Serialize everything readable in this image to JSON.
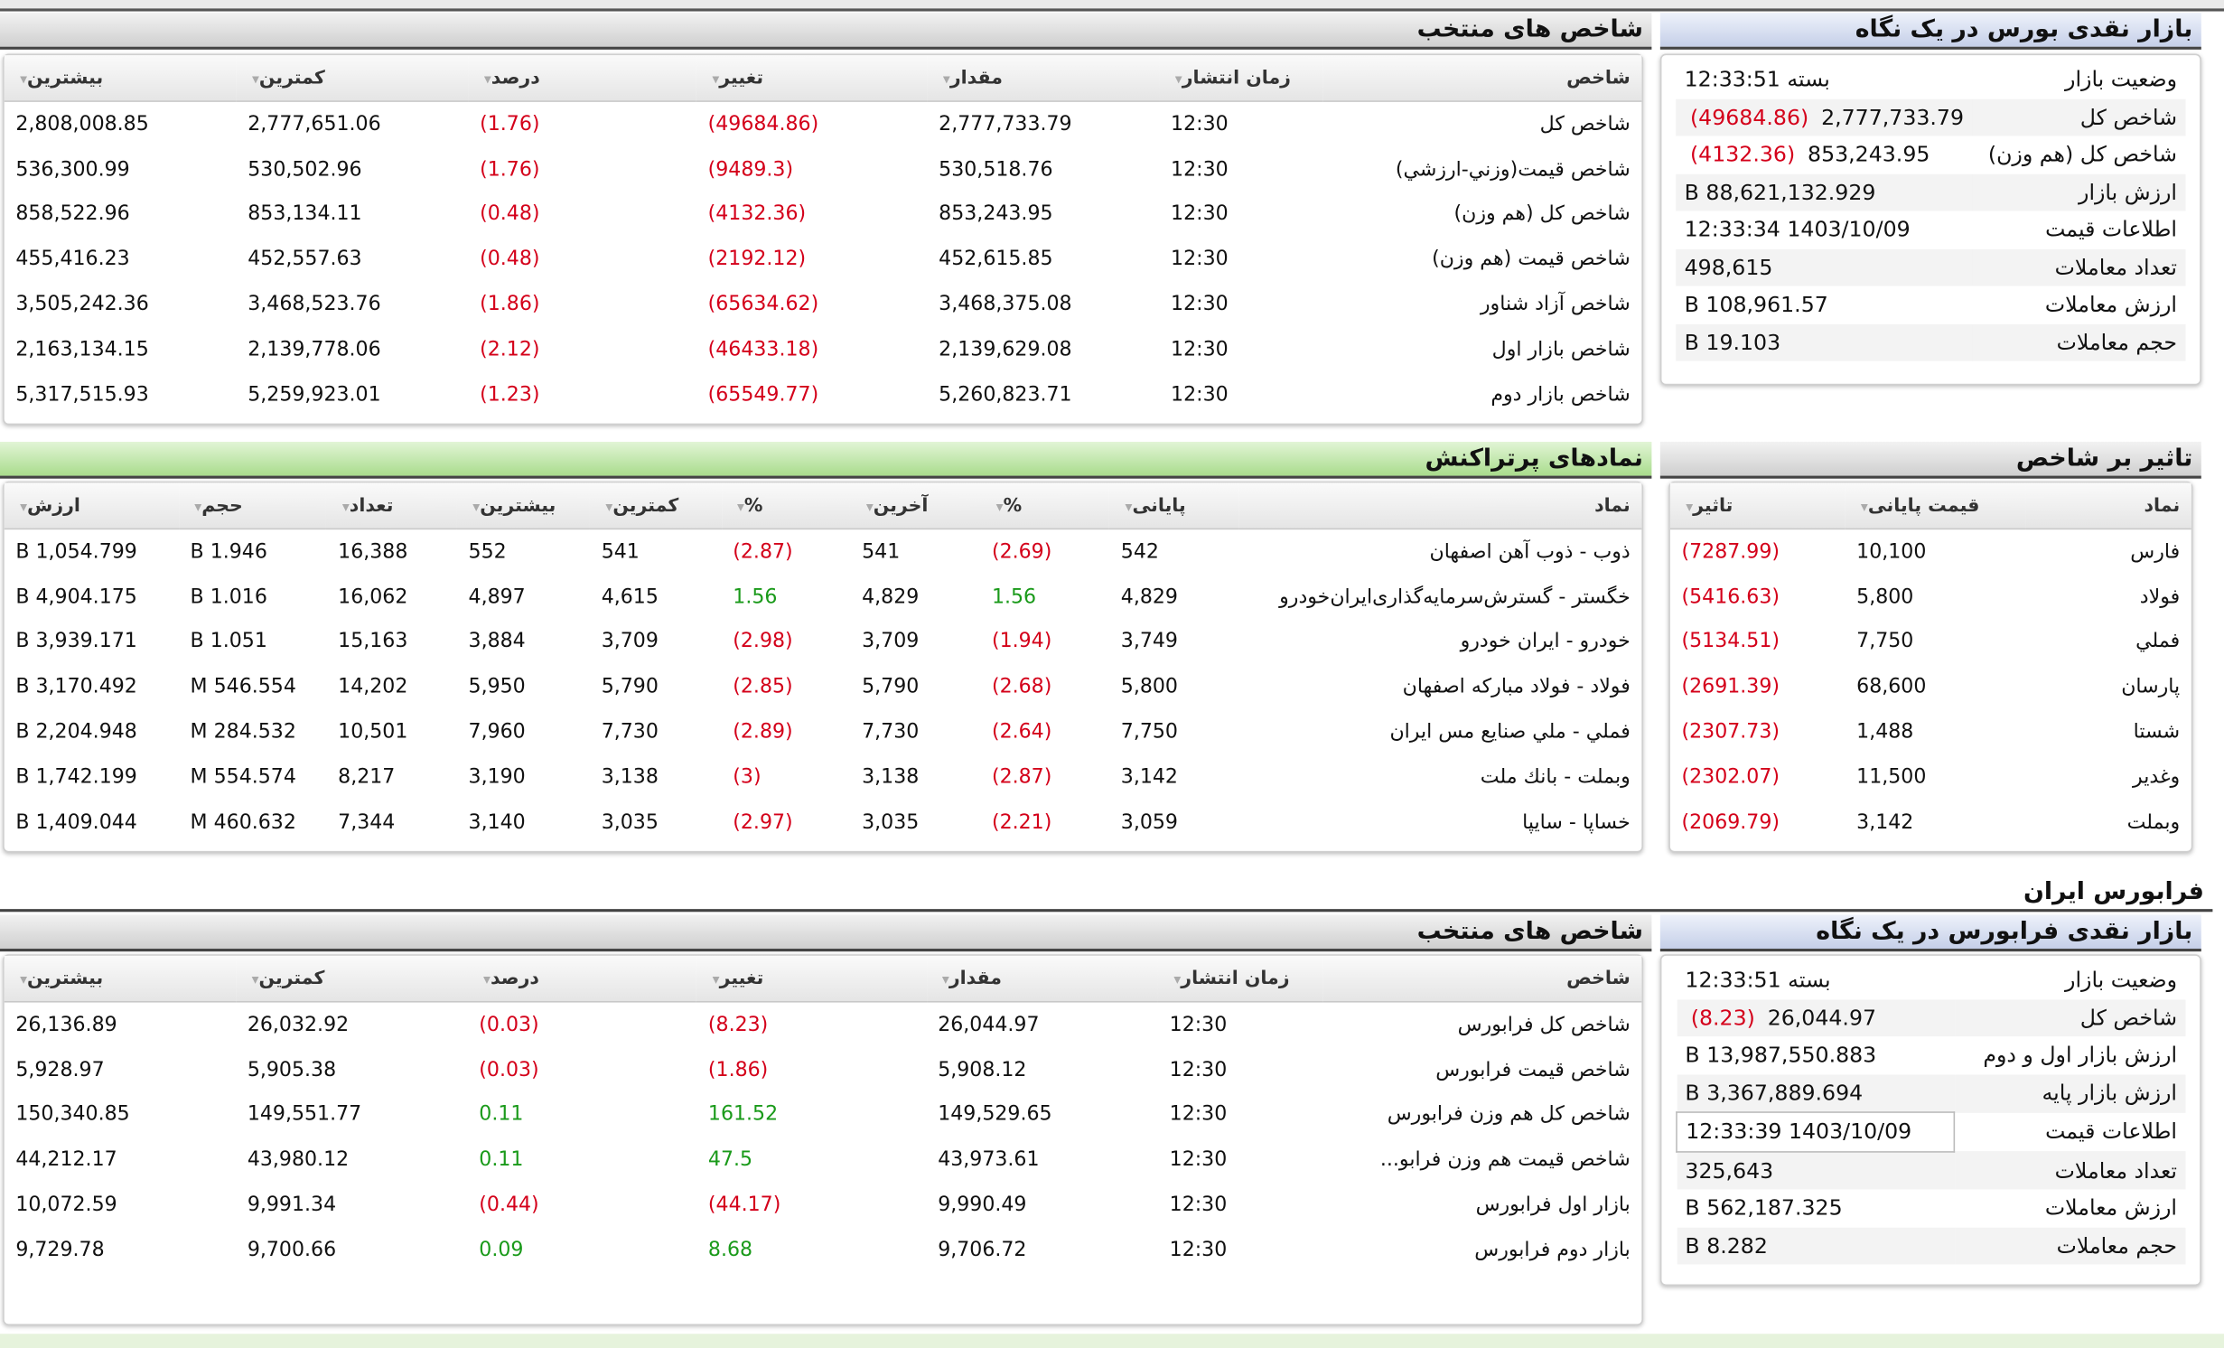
{
  "colors": {
    "negative": "#d4001a",
    "positive": "#1a9a1a",
    "green_header": "#a9dc8c",
    "blue_header": "#c5cfe8"
  },
  "bourse": {
    "summary_title": "بازار نقدی بورس در یک نگاه",
    "summary": [
      {
        "label": "وضعیت بازار",
        "value": "بسته 12:33:51",
        "change": ""
      },
      {
        "label": "شاخص کل",
        "value": "2,777,733.79",
        "change": "(49684.86)"
      },
      {
        "label": "شاخص کل (هم وزن)",
        "value": "853,243.95",
        "change": "(4132.36)"
      },
      {
        "label": "ارزش بازار",
        "value": "88,621,132.929 B",
        "change": ""
      },
      {
        "label": "اطلاعات قیمت",
        "value": "1403/10/09 12:33:34",
        "change": ""
      },
      {
        "label": "تعداد معاملات",
        "value": "498,615",
        "change": ""
      },
      {
        "label": "ارزش معاملات",
        "value": "108,961.57 B",
        "change": ""
      },
      {
        "label": "حجم معاملات",
        "value": "19.103 B",
        "change": ""
      }
    ],
    "indices_title": "شاخص های منتخب",
    "indices_headers": [
      "شاخص",
      "زمان انتشار",
      "مقدار",
      "تغییر",
      "درصد",
      "کمترین",
      "بیشترین"
    ],
    "indices_rows": [
      {
        "name": "شاخص كل",
        "time": "12:30",
        "value": "2,777,733.79",
        "change": "(49684.86)",
        "percent": "(1.76)",
        "min": "2,777,651.06",
        "max": "2,808,008.85"
      },
      {
        "name": "شاخص قيمت(وزني-ارزشي)",
        "time": "12:30",
        "value": "530,518.76",
        "change": "(9489.3)",
        "percent": "(1.76)",
        "min": "530,502.96",
        "max": "536,300.99"
      },
      {
        "name": "شاخص كل (هم وزن)",
        "time": "12:30",
        "value": "853,243.95",
        "change": "(4132.36)",
        "percent": "(0.48)",
        "min": "853,134.11",
        "max": "858,522.96"
      },
      {
        "name": "شاخص قيمت (هم وزن)",
        "time": "12:30",
        "value": "452,615.85",
        "change": "(2192.12)",
        "percent": "(0.48)",
        "min": "452,557.63",
        "max": "455,416.23"
      },
      {
        "name": "شاخص آزاد شناور",
        "time": "12:30",
        "value": "3,468,375.08",
        "change": "(65634.62)",
        "percent": "(1.86)",
        "min": "3,468,523.76",
        "max": "3,505,242.36"
      },
      {
        "name": "شاخص بازار اول",
        "time": "12:30",
        "value": "2,139,629.08",
        "change": "(46433.18)",
        "percent": "(2.12)",
        "min": "2,139,778.06",
        "max": "2,163,134.15"
      },
      {
        "name": "شاخص بازار دوم",
        "time": "12:30",
        "value": "5,260,823.71",
        "change": "(65549.77)",
        "percent": "(1.23)",
        "min": "5,259,923.01",
        "max": "5,317,515.93"
      }
    ],
    "impact_title": "تاثیر بر شاخص",
    "impact_headers": [
      "نماد",
      "قیمت پایانی",
      "تاثیر"
    ],
    "impact_rows": [
      {
        "symbol": "فارس",
        "price": "10,100",
        "impact": "(7287.99)"
      },
      {
        "symbol": "فولاد",
        "price": "5,800",
        "impact": "(5416.63)"
      },
      {
        "symbol": "فملي",
        "price": "7,750",
        "impact": "(5134.51)"
      },
      {
        "symbol": "پارسان",
        "price": "68,600",
        "impact": "(2691.39)"
      },
      {
        "symbol": "شستا",
        "price": "1,488",
        "impact": "(2307.73)"
      },
      {
        "symbol": "وغدير",
        "price": "11,500",
        "impact": "(2302.07)"
      },
      {
        "symbol": "وبملت",
        "price": "3,142",
        "impact": "(2069.79)"
      }
    ],
    "active_title": "نمادهای پرتراکنش",
    "active_headers": [
      "نماد",
      "پایانی",
      "%",
      "آخرین",
      "%",
      "کمترین",
      "بیشترین",
      "تعداد",
      "حجم",
      "ارزش"
    ],
    "active_rows": [
      {
        "symbol": "ذوب - ذوب آهن اصفهان",
        "close": "542",
        "close_pct": "(2.69)",
        "last": "541",
        "last_pct": "(2.87)",
        "min": "541",
        "max": "552",
        "count": "16,388",
        "volume": "1.946 B",
        "value": "1,054.799 B"
      },
      {
        "symbol": "خگستر - گسترش‌سرمایه‌گذاری‌ایران‌خودرو",
        "close": "4,829",
        "close_pct": "1.56",
        "last": "4,829",
        "last_pct": "1.56",
        "min": "4,615",
        "max": "4,897",
        "count": "16,062",
        "volume": "1.016 B",
        "value": "4,904.175 B"
      },
      {
        "symbol": "خودرو - ایران‌ خودرو",
        "close": "3,749",
        "close_pct": "(1.94)",
        "last": "3,709",
        "last_pct": "(2.98)",
        "min": "3,709",
        "max": "3,884",
        "count": "15,163",
        "volume": "1.051 B",
        "value": "3,939.171 B"
      },
      {
        "symbol": "فولاد - فولاد مباركه اصفهان",
        "close": "5,800",
        "close_pct": "(2.68)",
        "last": "5,790",
        "last_pct": "(2.85)",
        "min": "5,790",
        "max": "5,950",
        "count": "14,202",
        "volume": "546.554 M",
        "value": "3,170.492 B"
      },
      {
        "symbol": "فملي - ملي صنايع مس ايران",
        "close": "7,750",
        "close_pct": "(2.64)",
        "last": "7,730",
        "last_pct": "(2.89)",
        "min": "7,730",
        "max": "7,960",
        "count": "10,501",
        "volume": "284.532 M",
        "value": "2,204.948 B"
      },
      {
        "symbol": "وبملت - بانك ملت",
        "close": "3,142",
        "close_pct": "(2.87)",
        "last": "3,138",
        "last_pct": "(3)",
        "min": "3,138",
        "max": "3,190",
        "count": "8,217",
        "volume": "554.574 M",
        "value": "1,742.199 B"
      },
      {
        "symbol": "خساپا - سايپا",
        "close": "3,059",
        "close_pct": "(2.21)",
        "last": "3,035",
        "last_pct": "(2.97)",
        "min": "3,035",
        "max": "3,140",
        "count": "7,344",
        "volume": "460.632 M",
        "value": "1,409.044 B"
      }
    ]
  },
  "farabourse": {
    "section_title": "فرابورس ایران",
    "summary_title": "بازار نقدی فرابورس در یک نگاه",
    "summary": [
      {
        "label": "وضعیت بازار",
        "value": "بسته 12:33:51",
        "change": ""
      },
      {
        "label": "شاخص کل",
        "value": "26,044.97",
        "change": "(8.23)"
      },
      {
        "label": "ارزش بازار اول و دوم",
        "value": "13,987,550.883 B",
        "change": ""
      },
      {
        "label": "ارزش بازار پایه",
        "value": "3,367,889.694 B",
        "change": ""
      },
      {
        "label": "اطلاعات قیمت",
        "value": "1403/10/09 12:33:39",
        "change": ""
      },
      {
        "label": "تعداد معاملات",
        "value": "325,643",
        "change": ""
      },
      {
        "label": "ارزش معاملات",
        "value": "562,187.325 B",
        "change": ""
      },
      {
        "label": "حجم معاملات",
        "value": "8.282 B",
        "change": ""
      }
    ],
    "indices_title": "شاخص های منتخب",
    "indices_headers": [
      "شاخص",
      "زمان انتشار",
      "مقدار",
      "تغییر",
      "درصد",
      "کمترین",
      "بیشترین"
    ],
    "indices_rows": [
      {
        "name": "شاخص كل فرابورس",
        "time": "12:30",
        "value": "26,044.97",
        "change": "(8.23)",
        "percent": "(0.03)",
        "min": "26,032.92",
        "max": "26,136.89"
      },
      {
        "name": "شاخص قیمت فرابورس",
        "time": "12:30",
        "value": "5,908.12",
        "change": "(1.86)",
        "percent": "(0.03)",
        "min": "5,905.38",
        "max": "5,928.97"
      },
      {
        "name": "شاخص کل هم وزن فرابورس",
        "time": "12:30",
        "value": "149,529.65",
        "change": "161.52",
        "percent": "0.11",
        "min": "149,551.77",
        "max": "150,340.85"
      },
      {
        "name": "شاخص قیمت هم وزن فرابو...",
        "time": "12:30",
        "value": "43,973.61",
        "change": "47.5",
        "percent": "0.11",
        "min": "43,980.12",
        "max": "44,212.17"
      },
      {
        "name": "بازار اول فرابورس",
        "time": "12:30",
        "value": "9,990.49",
        "change": "(44.17)",
        "percent": "(0.44)",
        "min": "9,991.34",
        "max": "10,072.59"
      },
      {
        "name": "بازار دوم فرابورس",
        "time": "12:30",
        "value": "9,706.72",
        "change": "8.68",
        "percent": "0.09",
        "min": "9,700.66",
        "max": "9,729.78"
      }
    ]
  }
}
